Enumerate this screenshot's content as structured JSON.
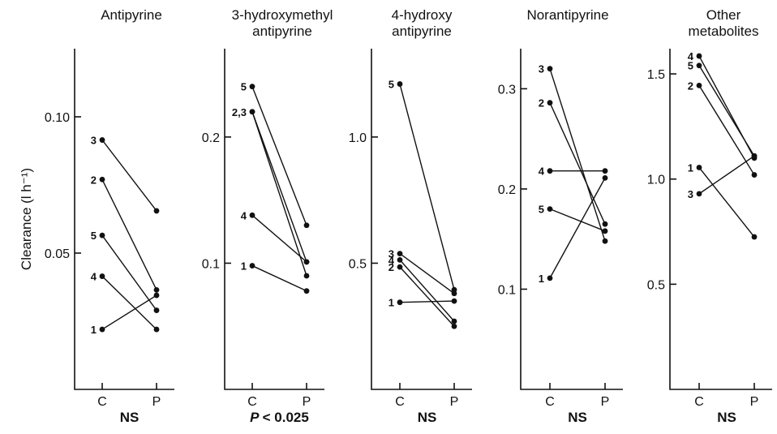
{
  "ylabel": "Clearance (l h⁻¹)",
  "chart_data": [
    {
      "type": "line",
      "title": "Antipyrine",
      "categories": [
        "C",
        "P"
      ],
      "ylim": [
        0.0,
        0.125
      ],
      "yticks": [
        {
          "v": 0.05,
          "label": "0.05"
        },
        {
          "v": 0.1,
          "label": "0.10"
        }
      ],
      "stat": "NS",
      "series": [
        {
          "name": "3",
          "values": [
            0.0915,
            0.0655
          ]
        },
        {
          "name": "2",
          "values": [
            0.077,
            0.0365
          ]
        },
        {
          "name": "5",
          "values": [
            0.0565,
            0.029
          ]
        },
        {
          "name": "4",
          "values": [
            0.0415,
            0.022
          ]
        },
        {
          "name": "1",
          "values": [
            0.022,
            0.0345
          ]
        }
      ]
    },
    {
      "type": "line",
      "title": "3-hydroxymethyl antipyrine",
      "title_lines": [
        "3-hydroxymethyl",
        "antipyrine"
      ],
      "categories": [
        "C",
        "P"
      ],
      "ylim": [
        0.0,
        0.27
      ],
      "yticks": [
        {
          "v": 0.1,
          "label": "0.1"
        },
        {
          "v": 0.2,
          "label": "0.2"
        }
      ],
      "stat_prefix": "P",
      "stat": "< 0.025",
      "series": [
        {
          "name": "5",
          "values": [
            0.24,
            0.13
          ]
        },
        {
          "name": "2,3",
          "values": [
            0.22,
            0.101
          ]
        },
        {
          "name": "",
          "values": [
            0.22,
            0.09
          ]
        },
        {
          "name": "4",
          "values": [
            0.138,
            0.101
          ]
        },
        {
          "name": "1",
          "values": [
            0.098,
            0.078
          ]
        }
      ]
    },
    {
      "type": "line",
      "title": "4-hydroxy antipyrine",
      "title_lines": [
        "4-hydroxy",
        "antipyrine"
      ],
      "categories": [
        "C",
        "P"
      ],
      "ylim": [
        0.0,
        1.35
      ],
      "yticks": [
        {
          "v": 0.5,
          "label": "0.5"
        },
        {
          "v": 1.0,
          "label": "1.0"
        }
      ],
      "stat": "NS",
      "series": [
        {
          "name": "5",
          "values": [
            1.21,
            0.395
          ]
        },
        {
          "name": "3",
          "values": [
            0.538,
            0.38
          ]
        },
        {
          "name": "4",
          "values": [
            0.513,
            0.27
          ]
        },
        {
          "name": "2",
          "values": [
            0.485,
            0.25
          ]
        },
        {
          "name": "1",
          "values": [
            0.345,
            0.35
          ]
        }
      ]
    },
    {
      "type": "line",
      "title": "Norantipyrine",
      "categories": [
        "C",
        "P"
      ],
      "ylim": [
        0.0,
        0.34
      ],
      "yticks": [
        {
          "v": 0.1,
          "label": "0.1"
        },
        {
          "v": 0.2,
          "label": "0.2"
        },
        {
          "v": 0.3,
          "label": "0.3"
        }
      ],
      "stat": "NS",
      "series": [
        {
          "name": "3",
          "values": [
            0.32,
            0.148
          ]
        },
        {
          "name": "2",
          "values": [
            0.286,
            0.165
          ]
        },
        {
          "name": "4",
          "values": [
            0.218,
            0.218
          ]
        },
        {
          "name": "5",
          "values": [
            0.18,
            0.158
          ]
        },
        {
          "name": "1",
          "values": [
            0.111,
            0.211
          ]
        }
      ]
    },
    {
      "type": "line",
      "title": "Other metabolites",
      "title_lines": [
        "Other",
        "metabolites"
      ],
      "categories": [
        "C",
        "P"
      ],
      "ylim": [
        0.0,
        1.62
      ],
      "yticks": [
        {
          "v": 0.5,
          "label": "0.5"
        },
        {
          "v": 1.0,
          "label": "1.0"
        },
        {
          "v": 1.5,
          "label": "1.5"
        }
      ],
      "stat": "NS",
      "series": [
        {
          "name": "4",
          "values": [
            1.585,
            1.1
          ]
        },
        {
          "name": "5",
          "values": [
            1.54,
            1.11
          ]
        },
        {
          "name": "2",
          "values": [
            1.445,
            1.02
          ]
        },
        {
          "name": "1",
          "values": [
            1.055,
            0.725
          ]
        },
        {
          "name": "3",
          "values": [
            0.93,
            1.11
          ]
        }
      ]
    }
  ]
}
